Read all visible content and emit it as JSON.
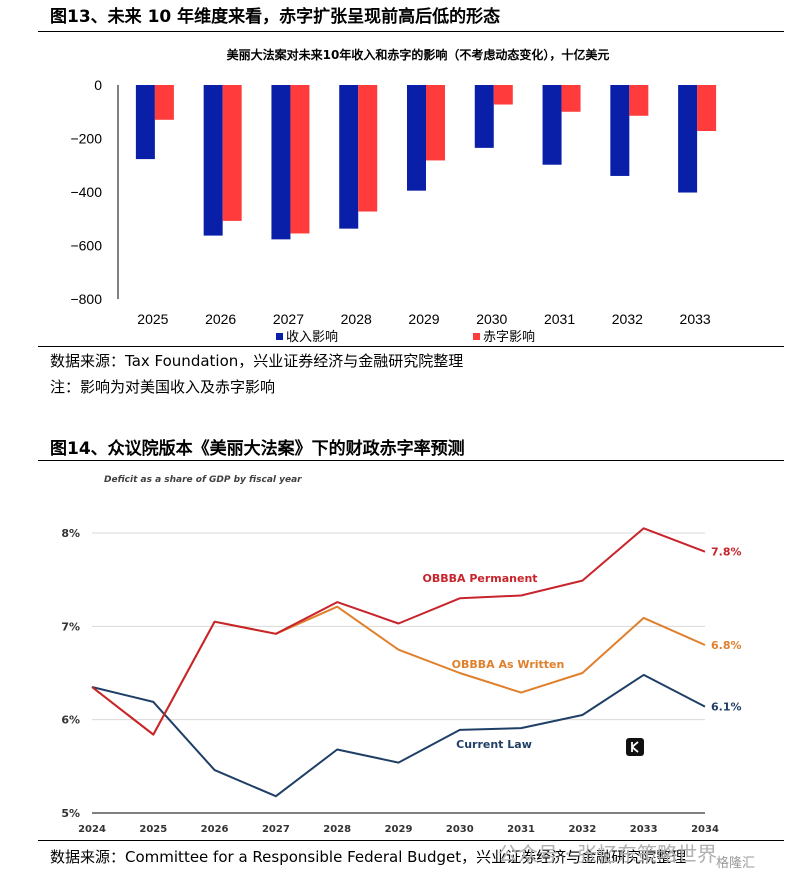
{
  "figure13": {
    "title": "图13、未来  10  年维度来看，赤字扩张呈现前高后低的形态",
    "source_label": "数据来源：",
    "source_text": "Tax Foundation，兴业证券经济与金融研究院整理",
    "note_label": "注：",
    "note_text": "影响为对美国收入及赤字影响"
  },
  "figure14": {
    "title": "图14、众议院版本《美丽大法案》下的财政赤字率预测",
    "source_label": "数据来源：",
    "source_text": "Committee for a Responsible Federal Budget，兴业证券经济与金融研究院整理"
  },
  "watermark": {
    "text": "公众号 · 张忆东策略世界",
    "corner": "格隆汇"
  },
  "chart_data": [
    {
      "type": "bar",
      "title": "美丽大法案对未来10年收入和赤字的影响（不考虑动态变化），十亿美元",
      "categories": [
        "2025",
        "2026",
        "2027",
        "2028",
        "2029",
        "2030",
        "2031",
        "2032",
        "2033"
      ],
      "series": [
        {
          "name": "收入影响",
          "color": "#0a1fa8",
          "values": [
            -277,
            -563,
            -577,
            -537,
            -395,
            -235,
            -298,
            -340,
            -402
          ]
        },
        {
          "name": "赤字影响",
          "color": "#ff3b3b",
          "values": [
            -130,
            -508,
            -555,
            -473,
            -282,
            -73,
            -100,
            -115,
            -172
          ]
        }
      ],
      "yticks": [
        "0",
        "−200",
        "−400",
        "−600",
        "−800"
      ],
      "ylim": [
        -800,
        0
      ],
      "legend": "bottom"
    },
    {
      "type": "line",
      "title": "Deficit as a share of GDP by fiscal year",
      "x": [
        "2024",
        "2025",
        "2026",
        "2027",
        "2028",
        "2029",
        "2030",
        "2031",
        "2032",
        "2033",
        "2034"
      ],
      "yticks": [
        "8%",
        "7%",
        "6%",
        "5%"
      ],
      "ylim": [
        5,
        8
      ],
      "series": [
        {
          "name": "OBBBA Permanent",
          "color": "#c8242b",
          "end_label": "7.8%",
          "values": [
            6.35,
            5.84,
            7.05,
            6.92,
            7.26,
            7.03,
            7.3,
            7.33,
            7.49,
            8.05,
            7.8
          ]
        },
        {
          "name": "OBBBA As Written",
          "color": "#e07f2c",
          "end_label": "6.8%",
          "values": [
            6.35,
            5.84,
            7.05,
            6.92,
            7.21,
            6.75,
            6.5,
            6.29,
            6.5,
            7.09,
            6.8
          ]
        },
        {
          "name": "Current Law",
          "color": "#1f3f66",
          "end_label": "6.1%",
          "values": [
            6.35,
            6.19,
            5.46,
            5.18,
            5.68,
            5.54,
            5.89,
            5.91,
            6.05,
            6.48,
            6.14
          ]
        }
      ]
    }
  ]
}
